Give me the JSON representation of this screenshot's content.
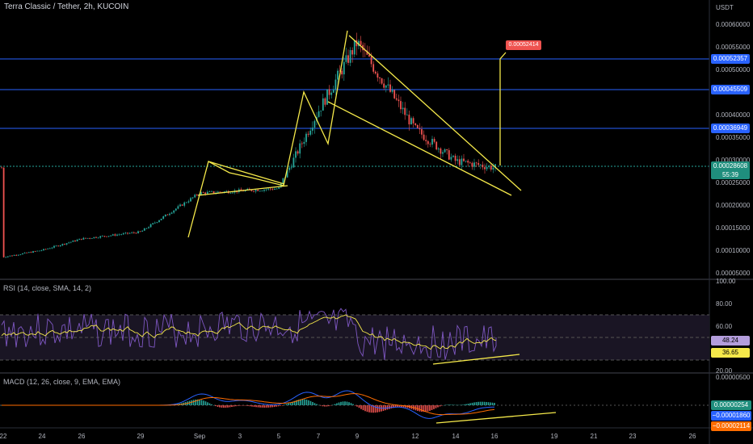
{
  "header": {
    "title": "Terra Classic / Tether, 2h, KUCOIN"
  },
  "price_axis": {
    "currency": "USDT",
    "ticks": [
      "0.00060000",
      "0.00055000",
      "0.00050000",
      "0.00045000",
      "0.00040000",
      "0.00035000",
      "0.00030000",
      "0.00025000",
      "0.00020000",
      "0.00015000",
      "0.00010000",
      "0.00005000"
    ],
    "levels": [
      "0.00052357",
      "0.00045509",
      "0.00036949"
    ],
    "current_price": "0.00028608",
    "countdown": "55:39",
    "alert": "0.00052414"
  },
  "rsi": {
    "title": "RSI (14, close, SMA, 14, 2)",
    "ticks": [
      "100.00",
      "80.00",
      "60.00",
      "20.00"
    ],
    "value": "48.24",
    "sma_value": "36.65"
  },
  "macd": {
    "title": "MACD (12, 26, close, 9, EMA, EMA)",
    "top_tick": "0.00000500",
    "hist_value": "0.00000254",
    "macd_value": "−0.00001860",
    "signal_value": "−0.00002114"
  },
  "time_axis": {
    "labels": [
      "22",
      "24",
      "26",
      "29",
      "Sep",
      "3",
      "5",
      "7",
      "9",
      "12",
      "14",
      "16",
      "19",
      "21",
      "23",
      "26"
    ]
  },
  "colors": {
    "bg": "#000000",
    "up": "#26a69a",
    "down": "#ef5350",
    "level": "#2962ff",
    "pattern": "#f5e94a",
    "rsi": "#7e57c2",
    "macd": "#2962ff",
    "signal": "#ff6d00"
  },
  "chart_data": {
    "type": "line",
    "title": "Terra Classic / Tether, 2h, KUCOIN",
    "x": [
      "22",
      "24",
      "26",
      "29",
      "Sep",
      "3",
      "5",
      "7",
      "9",
      "12",
      "14",
      "16"
    ],
    "series": [
      {
        "values": [
          9e-05,
          0.000105,
          0.00013,
          0.000145,
          0.00023,
          0.000235,
          0.00024,
          0.00041,
          0.00056,
          0.00037,
          0.0003,
          0.000286
        ]
      }
    ],
    "ylim": [
      5e-05,
      0.0006
    ],
    "log_scale": false
  }
}
